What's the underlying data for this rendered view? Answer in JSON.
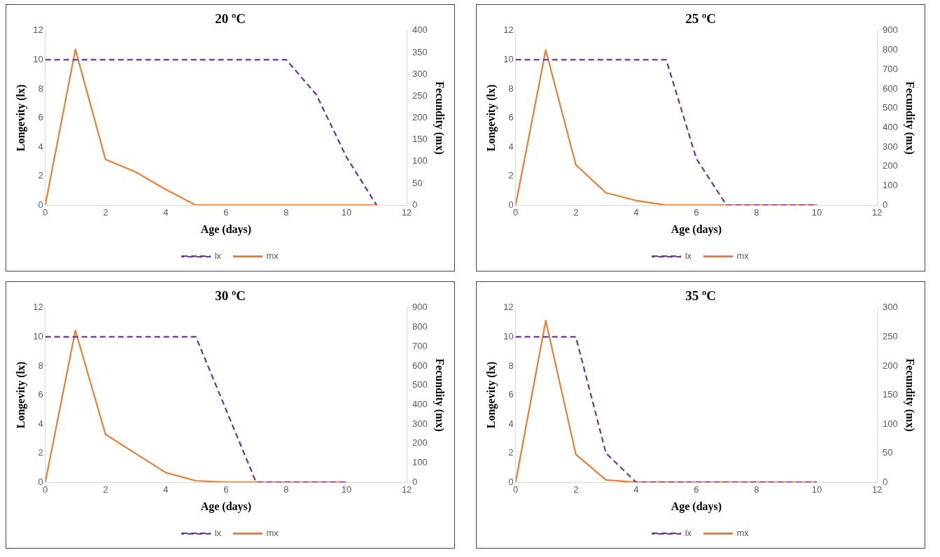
{
  "chart_data": [
    {
      "type": "line",
      "title": "20 ºC",
      "xlabel": "Age (days)",
      "ylabel": "Longevity (lx)",
      "y2label": "Fecundity (mx)",
      "x": [
        0,
        1,
        2,
        3,
        4,
        5,
        6,
        7,
        8,
        9,
        10,
        11
      ],
      "xlim": [
        0,
        12
      ],
      "xticks": [
        0,
        2,
        4,
        6,
        8,
        10,
        12
      ],
      "ylim": [
        0,
        12
      ],
      "yticks": [
        0,
        2,
        4,
        6,
        8,
        10,
        12
      ],
      "y2lim": [
        0,
        400
      ],
      "y2ticks": [
        0,
        50,
        100,
        150,
        200,
        250,
        300,
        350,
        400
      ],
      "grid": false,
      "legend": "bottom",
      "marker": "none",
      "series": [
        {
          "name": "lx",
          "color": "#7030a0",
          "line_style": "dashed",
          "values": [
            10,
            10,
            10,
            10,
            10,
            10,
            10,
            10,
            10,
            7.6,
            3.3,
            0
          ]
        },
        {
          "name": "mx",
          "color": "#ed7d31",
          "line_style": "solid",
          "axis": "y2",
          "values": [
            0,
            357,
            105,
            76,
            36,
            0,
            0,
            0,
            0,
            0,
            0,
            0
          ]
        }
      ]
    },
    {
      "type": "line",
      "title": "25 ºC",
      "xlabel": "Age (days)",
      "ylabel": "Longevity (lx)",
      "y2label": "Fecundity (mx)",
      "x": [
        0,
        1,
        2,
        3,
        4,
        5,
        6,
        7,
        8,
        9,
        10
      ],
      "xlim": [
        0,
        12
      ],
      "xticks": [
        0,
        2,
        4,
        6,
        8,
        10,
        12
      ],
      "ylim": [
        0,
        12
      ],
      "yticks": [
        0,
        2,
        4,
        6,
        8,
        10,
        12
      ],
      "y2lim": [
        0,
        900
      ],
      "y2ticks": [
        0,
        100,
        200,
        300,
        400,
        500,
        600,
        700,
        800,
        900
      ],
      "grid": false,
      "legend": "bottom",
      "marker": "none",
      "series": [
        {
          "name": "lx",
          "color": "#7030a0",
          "line_style": "dashed",
          "values": [
            10,
            10,
            10,
            10,
            10,
            10,
            3.2,
            0,
            0,
            0,
            0
          ]
        },
        {
          "name": "mx",
          "color": "#ed7d31",
          "line_style": "solid",
          "axis": "y2",
          "values": [
            0,
            800,
            208,
            64,
            24,
            0,
            0,
            0,
            0,
            0,
            0
          ]
        }
      ]
    },
    {
      "type": "line",
      "title": "30 ºC",
      "xlabel": "Age (days)",
      "ylabel": "Longevity (lx)",
      "y2label": "Fecundity (mx)",
      "x": [
        0,
        1,
        2,
        3,
        4,
        5,
        6,
        7,
        8,
        9,
        10
      ],
      "xlim": [
        0,
        12
      ],
      "xticks": [
        0,
        2,
        4,
        6,
        8,
        10,
        12
      ],
      "ylim": [
        0,
        12
      ],
      "yticks": [
        0,
        2,
        4,
        6,
        8,
        10,
        12
      ],
      "y2lim": [
        0,
        900
      ],
      "y2ticks": [
        0,
        100,
        200,
        300,
        400,
        500,
        600,
        700,
        800,
        900
      ],
      "grid": false,
      "legend": "bottom",
      "marker": "none",
      "series": [
        {
          "name": "lx",
          "color": "#7030a0",
          "line_style": "dashed",
          "values": [
            10,
            10,
            10,
            10,
            10,
            10,
            5,
            0,
            0,
            0,
            0
          ]
        },
        {
          "name": "mx",
          "color": "#ed7d31",
          "line_style": "solid",
          "axis": "y2",
          "values": [
            0,
            783,
            247,
            148,
            50,
            8,
            0,
            0,
            0,
            0,
            0
          ]
        }
      ]
    },
    {
      "type": "line",
      "title": "35 ºC",
      "xlabel": "Age (days)",
      "ylabel": "Longevity (lx)",
      "y2label": "Fecundity (mx)",
      "x": [
        0,
        1,
        2,
        3,
        4,
        5,
        6,
        7,
        8,
        9,
        10
      ],
      "xlim": [
        0,
        12
      ],
      "xticks": [
        0,
        2,
        4,
        6,
        8,
        10,
        12
      ],
      "ylim": [
        0,
        12
      ],
      "yticks": [
        0,
        2,
        4,
        6,
        8,
        10,
        12
      ],
      "y2lim": [
        0,
        300
      ],
      "y2ticks": [
        0,
        50,
        100,
        150,
        200,
        250,
        300
      ],
      "grid": false,
      "legend": "bottom",
      "marker": "none",
      "series": [
        {
          "name": "lx",
          "color": "#7030a0",
          "line_style": "dashed",
          "values": [
            10,
            10,
            10,
            2,
            0,
            0,
            0,
            0,
            0,
            0,
            0
          ]
        },
        {
          "name": "mx",
          "color": "#ed7d31",
          "line_style": "solid",
          "axis": "y2",
          "values": [
            0,
            278,
            48,
            4,
            0,
            0,
            0,
            0,
            0,
            0,
            0
          ]
        }
      ]
    }
  ]
}
